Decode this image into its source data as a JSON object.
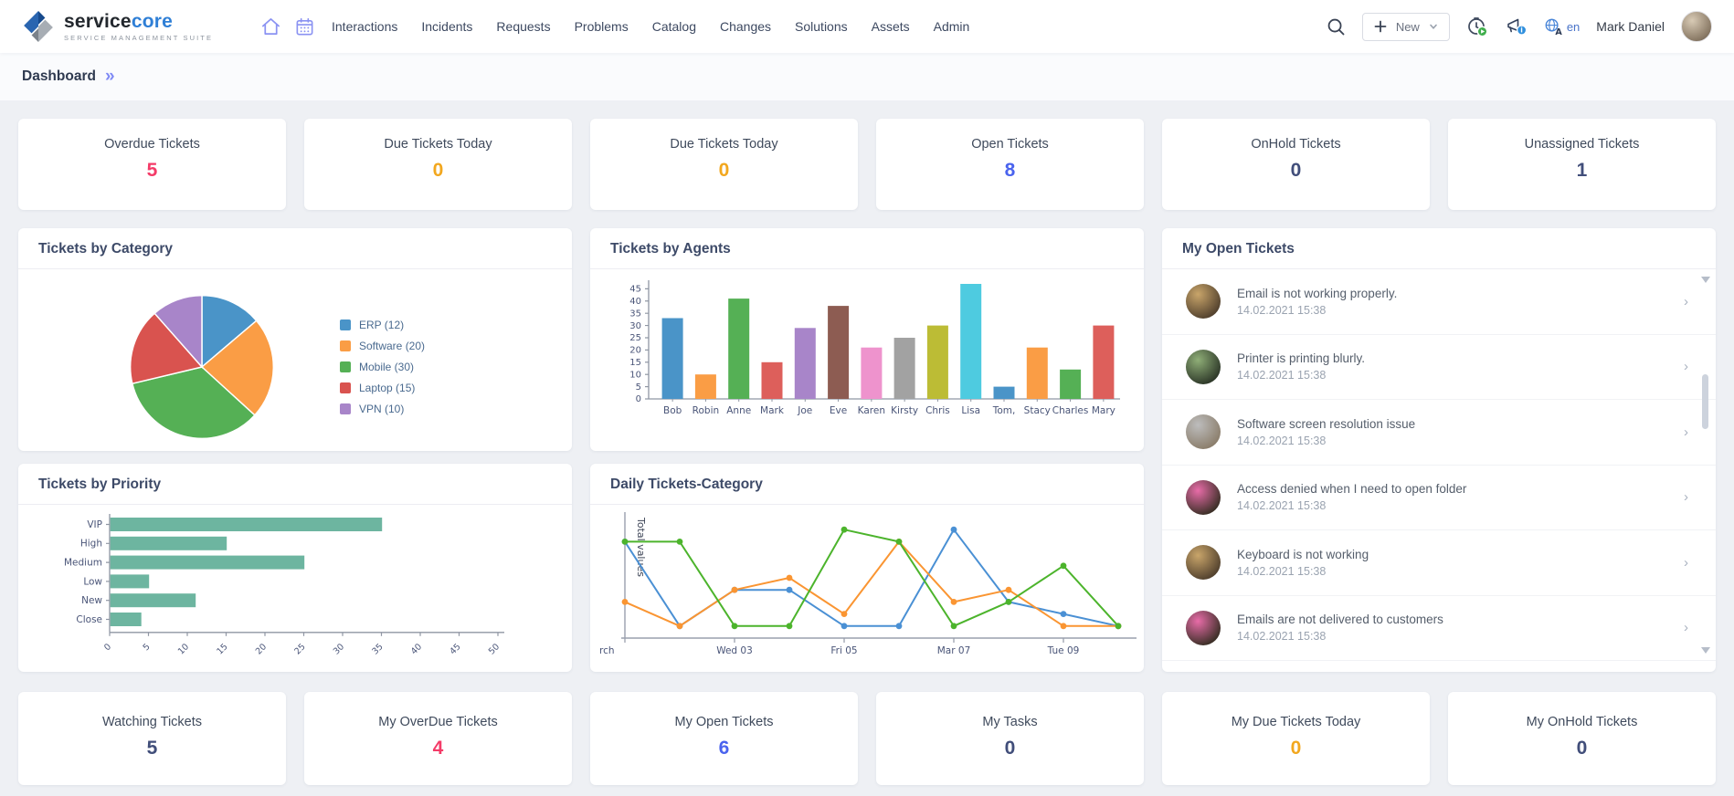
{
  "header": {
    "brand": {
      "name_primary": "service",
      "name_secondary": "core",
      "tagline": "SERVICE MANAGEMENT SUITE"
    },
    "nav_items": [
      "Interactions",
      "Incidents",
      "Requests",
      "Problems",
      "Catalog",
      "Changes",
      "Solutions",
      "Assets",
      "Admin"
    ],
    "new_button_label": "New",
    "language_code": "en",
    "user_name": "Mark Daniel"
  },
  "breadcrumb": {
    "current": "Dashboard"
  },
  "stat_cards_top": [
    {
      "label": "Overdue Tickets",
      "value": "5",
      "color": "#f43b68"
    },
    {
      "label": "Due Tickets Today",
      "value": "0",
      "color": "#f2a71e"
    },
    {
      "label": "Due Tickets Today",
      "value": "0",
      "color": "#f2a71e"
    },
    {
      "label": "Open Tickets",
      "value": "8",
      "color": "#4a63ee"
    },
    {
      "label": "OnHold Tickets",
      "value": "0",
      "color": "#414e7a"
    },
    {
      "label": "Unassigned Tickets",
      "value": "1",
      "color": "#414e7a"
    }
  ],
  "stat_cards_bottom": [
    {
      "label": "Watching Tickets",
      "value": "5",
      "color": "#414e7a"
    },
    {
      "label": "My OverDue Tickets",
      "value": "4",
      "color": "#f43b68"
    },
    {
      "label": "My Open Tickets",
      "value": "6",
      "color": "#4a63ee"
    },
    {
      "label": "My Tasks",
      "value": "0",
      "color": "#414e7a"
    },
    {
      "label": "My Due Tickets Today",
      "value": "0",
      "color": "#f2a71e"
    },
    {
      "label": "My OnHold Tickets",
      "value": "0",
      "color": "#414e7a"
    }
  ],
  "panels": {
    "category_title": "Tickets by Category",
    "agents_title": "Tickets by Agents",
    "priority_title": "Tickets by Priority",
    "daily_title": "Daily Tickets-Category",
    "open_tickets_title": "My Open Tickets"
  },
  "open_tickets": [
    {
      "title": "Email is not working properly.",
      "timestamp": "14.02.2021 15:38",
      "avatar": {
        "c1": "#c9a56a",
        "c2": "#54432f"
      }
    },
    {
      "title": "Printer is printing blurly.",
      "timestamp": "14.02.2021 15:38",
      "avatar": {
        "c1": "#8fae77",
        "c2": "#2f3a2a"
      }
    },
    {
      "title": "Software screen resolution issue",
      "timestamp": "14.02.2021 15:38",
      "avatar": {
        "c1": "#bdbdbd",
        "c2": "#8c7f6d"
      }
    },
    {
      "title": "Access denied when I need to open folder",
      "timestamp": "14.02.2021 15:38",
      "avatar": {
        "c1": "#e86ca8",
        "c2": "#3d3028"
      }
    },
    {
      "title": "Keyboard is not working",
      "timestamp": "14.02.2021 15:38",
      "avatar": {
        "c1": "#c9a56a",
        "c2": "#54432f"
      }
    },
    {
      "title": "Emails are not delivered to customers",
      "timestamp": "14.02.2021 15:38",
      "avatar": {
        "c1": "#e86ca8",
        "c2": "#3d3028"
      }
    }
  ],
  "chart_data": [
    {
      "id": "category_pie",
      "type": "pie",
      "title": "Tickets by Category",
      "labels": [
        "ERP",
        "Software",
        "Mobile",
        "Laptop",
        "VPN"
      ],
      "values": [
        12,
        20,
        30,
        15,
        10
      ],
      "legend": [
        "ERP (12)",
        "Software (20)",
        "Mobile (30)",
        "Laptop (15)",
        "VPN (10)"
      ],
      "colors": [
        "#4a94c8",
        "#fa9d45",
        "#55b055",
        "#d9534f",
        "#a885c9"
      ],
      "legend_position": "right",
      "start_angle": "top",
      "direction": "clockwise"
    },
    {
      "id": "agents_bar",
      "type": "bar",
      "title": "Tickets by Agents",
      "categories": [
        "Bob",
        "Robin",
        "Anne",
        "Mark",
        "Joe",
        "Eve",
        "Karen",
        "Kirsty",
        "Chris",
        "Lisa",
        "Tom,",
        "Stacy",
        "Charles",
        "Mary"
      ],
      "values": [
        33,
        10,
        41,
        15,
        29,
        38,
        21,
        25,
        30,
        47,
        5,
        21,
        12,
        30
      ],
      "palette": [
        "#4a94c8",
        "#fa9d45",
        "#55b055",
        "#dd5f5b",
        "#a885c9",
        "#8d5c52",
        "#ee93cd",
        "#a2a2a2",
        "#bcbc35",
        "#4ecbe0"
      ],
      "ylim": [
        0,
        45
      ],
      "ytick_step": 5,
      "grid": false,
      "legend_position": "none"
    },
    {
      "id": "priority_bar",
      "type": "bar",
      "orientation": "horizontal",
      "title": "Tickets by Priority",
      "categories": [
        "VIP",
        "High",
        "Medium",
        "Low",
        "New",
        "Close"
      ],
      "values": [
        35,
        15,
        25,
        5,
        11,
        4
      ],
      "color": "#6db5a0",
      "xlim": [
        0,
        50
      ],
      "xtick_step": 5,
      "xtick_rotation": 45,
      "grid": false,
      "legend_position": "none"
    },
    {
      "id": "daily_line",
      "type": "line",
      "title": "Daily Tickets-Category",
      "ylabel": "Total values",
      "x": [
        1,
        2,
        3,
        4,
        5,
        6,
        7,
        8,
        9,
        10
      ],
      "x_ticks": [
        {
          "pos": 0,
          "label": "rch"
        },
        {
          "pos": 2,
          "label": "Wed 03"
        },
        {
          "pos": 4,
          "label": "Fri 05"
        },
        {
          "pos": 6,
          "label": "Mar 07"
        },
        {
          "pos": 8,
          "label": "Tue 09"
        }
      ],
      "ylim": [
        0,
        10
      ],
      "grid": false,
      "legend_position": "none",
      "markers": true,
      "series": [
        {
          "name": "blue",
          "color": "#4a90d4",
          "values": [
            8,
            1,
            4,
            4,
            1,
            1,
            9,
            3,
            2,
            1
          ]
        },
        {
          "name": "orange",
          "color": "#fa9532",
          "values": [
            3,
            1,
            4,
            5,
            2,
            8,
            3,
            4,
            1,
            1
          ]
        },
        {
          "name": "green",
          "color": "#4cb42c",
          "values": [
            8,
            8,
            1,
            1,
            9,
            8,
            1,
            3,
            6,
            1
          ]
        }
      ]
    }
  ]
}
